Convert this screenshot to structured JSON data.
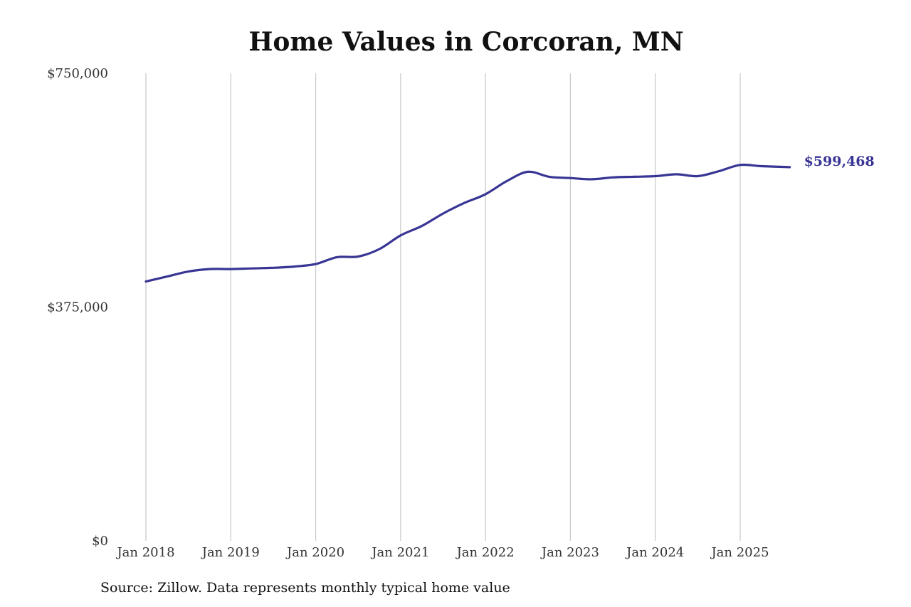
{
  "chart_data": {
    "type": "line",
    "title": "Home Values in Corcoran, MN",
    "source": "Source: Zillow. Data represents monthly typical home value",
    "xlabel": "",
    "ylabel": "",
    "x_ticks": [
      "Jan 2018",
      "Jan 2019",
      "Jan 2020",
      "Jan 2021",
      "Jan 2022",
      "Jan 2023",
      "Jan 2024",
      "Jan 2025"
    ],
    "y_ticks": [
      "$0",
      "$375,000",
      "$750,000"
    ],
    "y_tick_values": [
      0,
      375000,
      750000
    ],
    "ylim": [
      0,
      750000
    ],
    "xlim": [
      "2018-01",
      "2025-12"
    ],
    "grid": "vertical",
    "line_color": "#383594",
    "end_label": "$599,468",
    "series": [
      {
        "x": [
          "2018-01",
          "2018-04",
          "2018-07",
          "2018-10",
          "2019-01",
          "2019-04",
          "2019-07",
          "2019-10",
          "2020-01",
          "2020-04",
          "2020-07",
          "2020-10",
          "2021-01",
          "2021-04",
          "2021-07",
          "2021-10",
          "2022-01",
          "2022-04",
          "2022-07",
          "2022-10",
          "2023-01",
          "2023-04",
          "2023-07",
          "2023-10",
          "2024-01",
          "2024-04",
          "2024-07",
          "2024-10",
          "2025-01",
          "2025-04",
          "2025-08"
        ],
        "values": [
          416000,
          424000,
          432000,
          436000,
          436000,
          437000,
          438000,
          440000,
          444000,
          455000,
          456000,
          468000,
          490000,
          505000,
          525000,
          542000,
          556000,
          577000,
          592000,
          584000,
          582000,
          580000,
          583000,
          584000,
          585000,
          588000,
          585000,
          593000,
          603000,
          601000,
          599468
        ]
      }
    ]
  }
}
